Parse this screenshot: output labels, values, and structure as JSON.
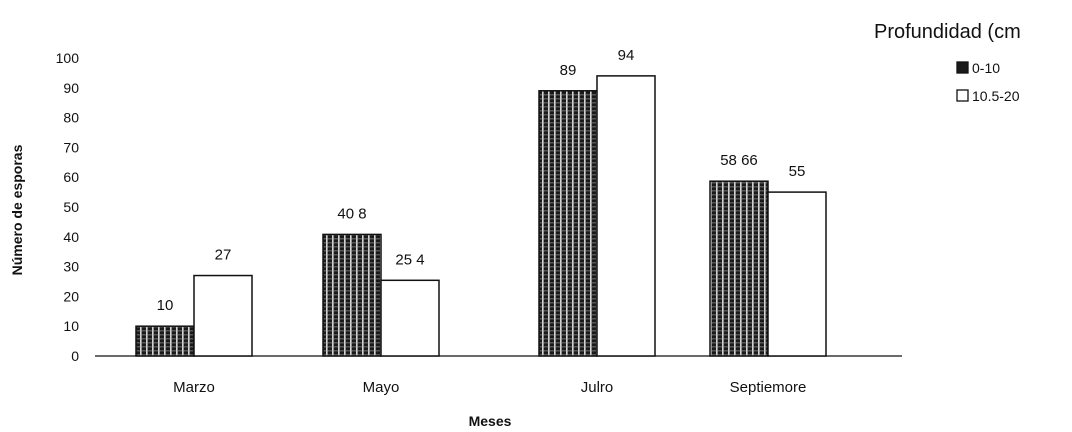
{
  "chart_data": {
    "type": "bar",
    "categories": [
      "Marzo",
      "Mayo",
      "Julio",
      "Septiembre"
    ],
    "category_labels_as_printed": [
      "Marzo",
      "Mayo",
      "Julro",
      "Septiemore"
    ],
    "series": [
      {
        "name": "0-10",
        "values": [
          10,
          40.8,
          89,
          58.66
        ],
        "labels": [
          "10",
          "40 8",
          "89",
          "58 66"
        ],
        "fill": "striped-dark"
      },
      {
        "name": "10.5-20",
        "values": [
          27,
          25.4,
          94,
          55
        ],
        "labels": [
          "27",
          "25 4",
          "94",
          "55"
        ],
        "fill": "white"
      }
    ],
    "xlabel": "Meses",
    "ylabel": "Número de esporas",
    "ylim": [
      0,
      100
    ],
    "yticks": [
      0,
      10,
      20,
      30,
      40,
      50,
      60,
      70,
      80,
      90,
      100
    ],
    "legend_title": "Profundidad (cm",
    "legend_position": "top-right",
    "grid": false,
    "colors": {
      "bar_dark": "#1a1a1a",
      "bar_stripe": "#d8d8d8",
      "bar_light": "#ffffff",
      "axis": "#111111"
    }
  }
}
